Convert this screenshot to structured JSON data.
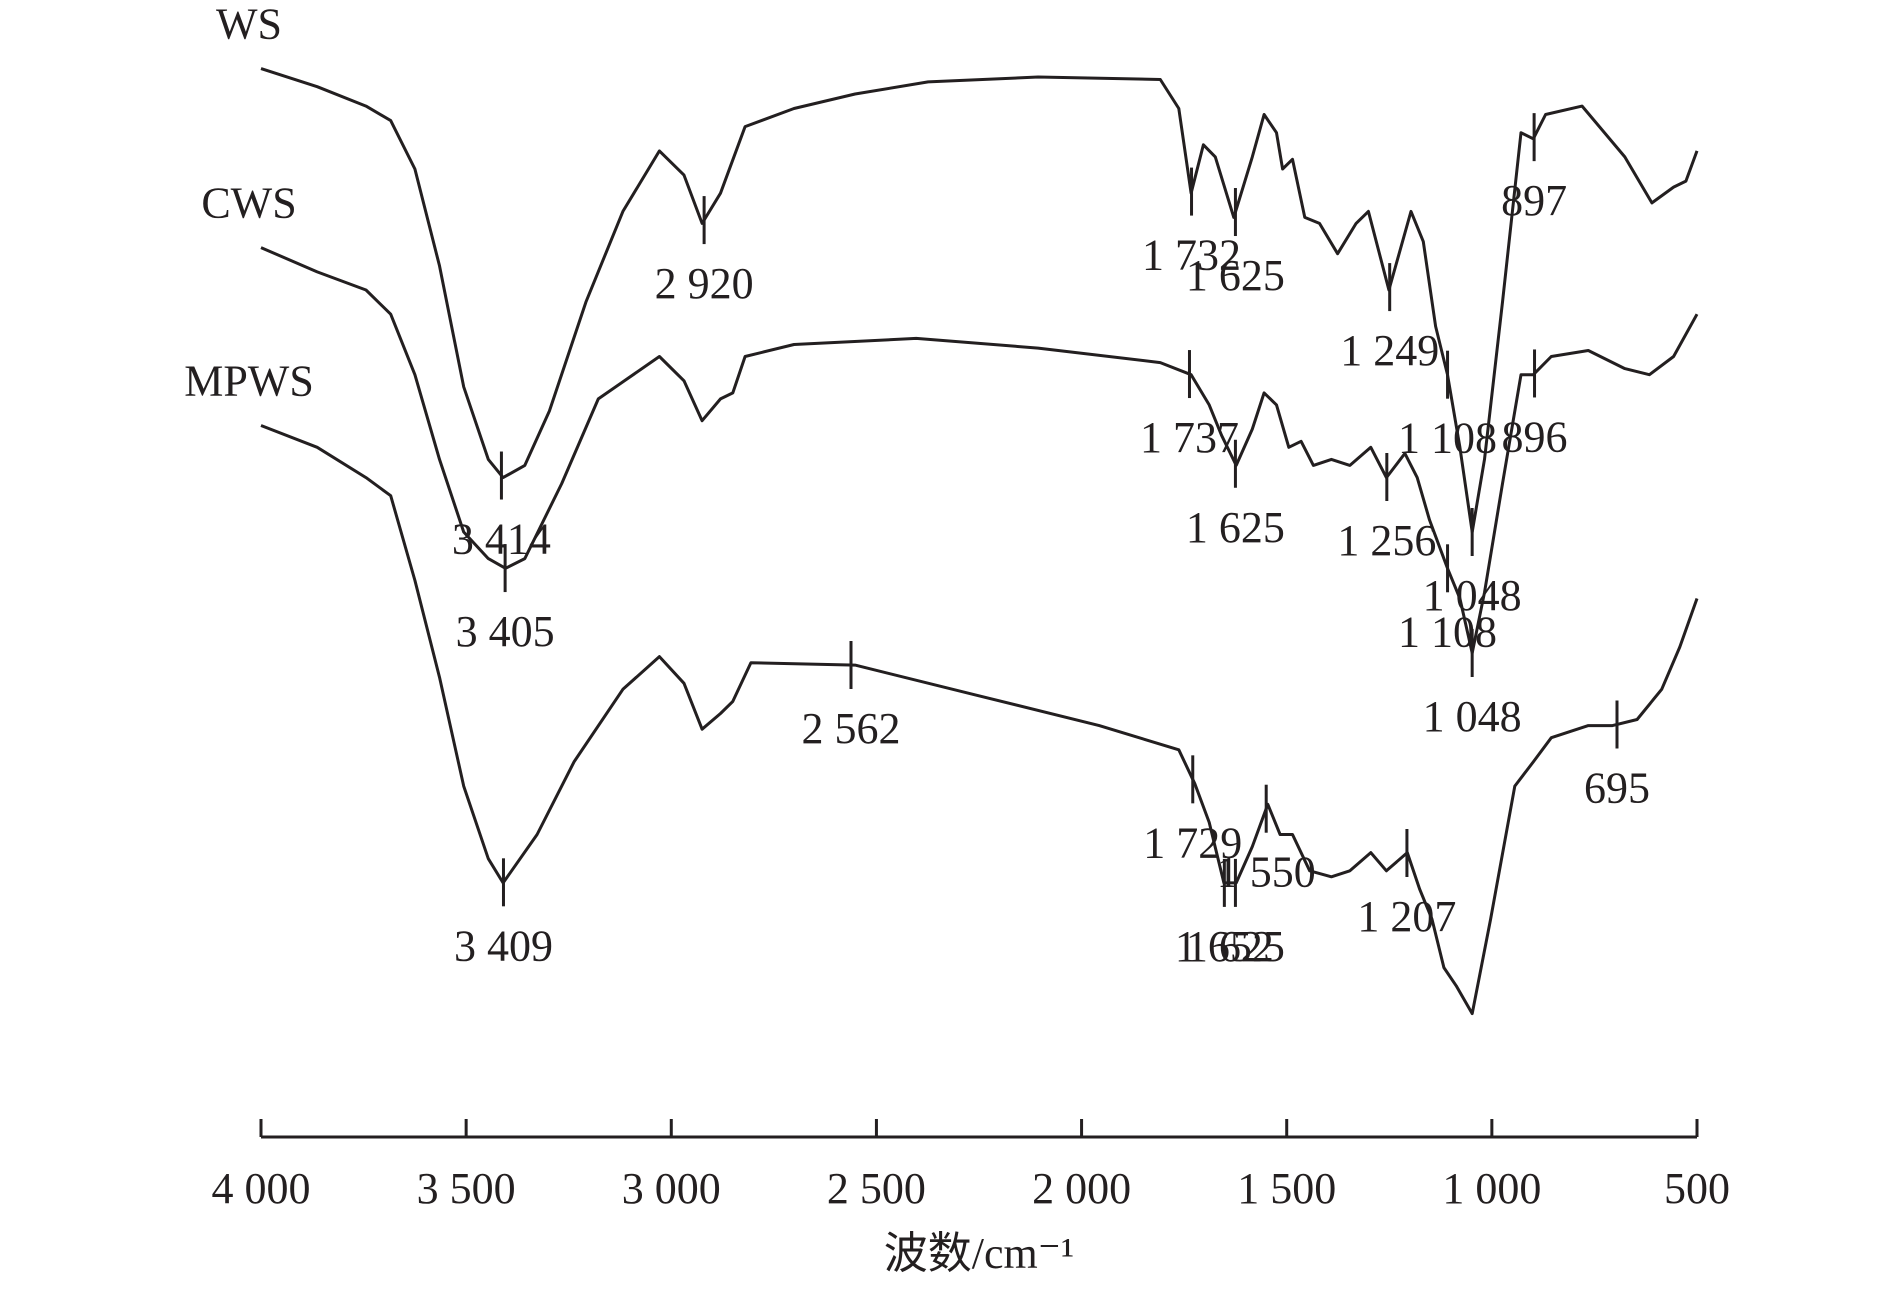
{
  "chart_data": {
    "type": "line",
    "x_label": "波数/cm⁻¹",
    "xlim": [
      4000,
      500
    ],
    "xticks": [
      {
        "value": 4000,
        "label": "4 000"
      },
      {
        "value": 3500,
        "label": "3 500"
      },
      {
        "value": 3000,
        "label": "3 000"
      },
      {
        "value": 2500,
        "label": "2 500"
      },
      {
        "value": 2000,
        "label": "2 000"
      },
      {
        "value": 1500,
        "label": "1 500"
      },
      {
        "value": 1000,
        "label": "1 000"
      },
      500
    ],
    "ylim": [
      0,
      900
    ],
    "color": "#231f20",
    "series": [
      {
        "name": "WS",
        "x": [
          4000,
          3863,
          3744,
          3684,
          3625,
          3565,
          3506,
          3446,
          3410,
          3357,
          3297,
          3208,
          3118,
          3029,
          2969,
          2925,
          2880,
          2820,
          2701,
          2552,
          2374,
          2106,
          1808,
          1763,
          1733,
          1703,
          1674,
          1629,
          1584,
          1555,
          1525,
          1510,
          1486,
          1456,
          1420,
          1376,
          1331,
          1301,
          1251,
          1197,
          1167,
          1137,
          1108,
          1078,
          1048,
          1018,
          974,
          929,
          899,
          869,
          780,
          676,
          610,
          557,
          527,
          500
        ],
        "values": [
          883,
          868,
          852,
          840,
          800,
          720,
          620,
          560,
          545,
          555,
          600,
          690,
          765,
          815,
          795,
          755,
          780,
          835,
          850,
          862,
          872,
          876,
          874,
          850,
          780,
          820,
          810,
          760,
          810,
          845,
          830,
          800,
          808,
          760,
          755,
          730,
          755,
          765,
          700,
          765,
          740,
          670,
          630,
          570,
          500,
          560,
          690,
          830,
          825,
          845,
          852,
          810,
          772,
          785,
          790,
          815
        ],
        "peaks": [
          {
            "value": 3414,
            "label": "3 414"
          },
          {
            "value": 2920,
            "label": "2 920"
          },
          {
            "value": 1732,
            "label": "1 732"
          },
          {
            "value": 1625,
            "label": "1 625"
          },
          {
            "value": 1249,
            "label": "1 249"
          },
          {
            "value": 1108,
            "label": "1 108"
          },
          {
            "value": 1048,
            "label": "1 048"
          },
          897
        ]
      },
      {
        "name": "CWS",
        "x": [
          4000,
          3863,
          3744,
          3684,
          3625,
          3565,
          3506,
          3446,
          3404,
          3357,
          3267,
          3178,
          3029,
          2969,
          2925,
          2880,
          2850,
          2820,
          2701,
          2403,
          2106,
          1808,
          1733,
          1689,
          1659,
          1623,
          1584,
          1555,
          1525,
          1495,
          1465,
          1435,
          1391,
          1346,
          1295,
          1257,
          1212,
          1182,
          1152,
          1108,
          1078,
          1048,
          1018,
          974,
          929,
          899,
          855,
          765,
          676,
          616,
          557,
          500
        ],
        "values": [
          735,
          715,
          700,
          680,
          630,
          560,
          500,
          478,
          470,
          478,
          540,
          610,
          645,
          625,
          592,
          610,
          615,
          645,
          655,
          660,
          652,
          640,
          630,
          605,
          580,
          555,
          585,
          615,
          605,
          570,
          575,
          555,
          560,
          555,
          570,
          545,
          565,
          545,
          510,
          470,
          445,
          400,
          450,
          540,
          630,
          630,
          645,
          650,
          635,
          630,
          645,
          680
        ],
        "peaks": [
          {
            "value": 3405,
            "label": "3 405"
          },
          {
            "value": 1737,
            "label": "1 737"
          },
          {
            "value": 1625,
            "label": "1 625"
          },
          {
            "value": 1256,
            "label": "1 256"
          },
          {
            "value": 1108,
            "label": "1 108"
          },
          {
            "value": 1048,
            "label": "1 048"
          },
          896
        ]
      },
      {
        "name": "MPWS",
        "x": [
          4000,
          3863,
          3744,
          3684,
          3625,
          3565,
          3506,
          3446,
          3410,
          3327,
          3237,
          3118,
          3029,
          2969,
          2925,
          2880,
          2850,
          2806,
          2552,
          2254,
          1957,
          1763,
          1724,
          1689,
          1653,
          1623,
          1584,
          1546,
          1516,
          1486,
          1444,
          1391,
          1346,
          1295,
          1257,
          1206,
          1176,
          1146,
          1117,
          1087,
          1048,
          1003,
          944,
          899,
          855,
          765,
          706,
          646,
          586,
          542,
          500
        ],
        "values": [
          588,
          570,
          545,
          530,
          460,
          380,
          290,
          230,
          210,
          250,
          310,
          370,
          397,
          375,
          337,
          350,
          360,
          392,
          390,
          365,
          340,
          320,
          292,
          260,
          210,
          210,
          240,
          275,
          250,
          250,
          220,
          215,
          220,
          235,
          220,
          235,
          205,
          180,
          140,
          125,
          102,
          180,
          290,
          310,
          330,
          340,
          340,
          345,
          370,
          405,
          445
        ],
        "peaks": [
          {
            "value": 3409,
            "label": "3 409"
          },
          {
            "value": 2562,
            "label": "2 562"
          },
          {
            "value": 1729,
            "label": "1 729"
          },
          {
            "value": 1652,
            "label": "1 652"
          },
          {
            "value": 1625,
            "label": "1 625"
          },
          {
            "value": 1550,
            "label": "1 550"
          },
          {
            "value": 1207,
            "label": "1 207"
          },
          695
        ]
      }
    ]
  }
}
